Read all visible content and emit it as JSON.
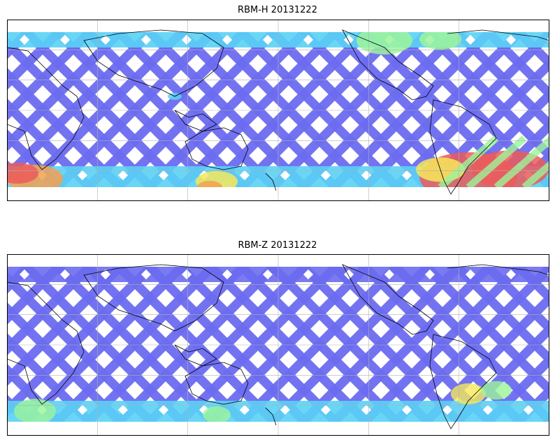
{
  "figure": {
    "panels": [
      {
        "title": "RBM-H 20131222",
        "colormap": "jet",
        "swath_pattern": "diagonal orbit swaths, ascending and descending"
      },
      {
        "title": "RBM-Z 20131222",
        "colormap": "jet",
        "swath_pattern": "diagonal orbit swaths, ascending and descending"
      }
    ],
    "projection": "plate carree, centered on Pacific",
    "gridlines": true,
    "coastlines": true,
    "colors": {
      "low": "#6b6bf0",
      "mid": "#5ad2f5",
      "high_green": "#9cf59a",
      "yellow": "#f5e85a",
      "orange": "#f5a050",
      "red": "#ec5a5a"
    }
  }
}
